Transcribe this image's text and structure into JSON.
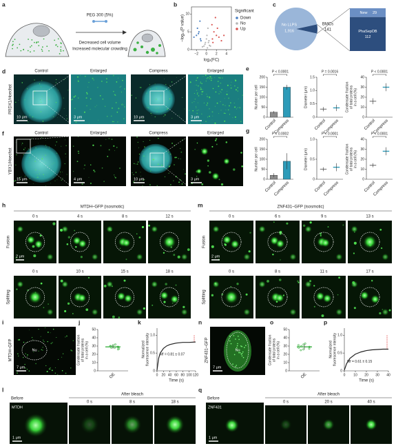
{
  "a": {
    "label": "a",
    "treatment": "PEG 300 (5%)",
    "effect_1": "Decreased cell volume",
    "effect_2": "Increased molecular crowding"
  },
  "b": {
    "label": "b",
    "chart": {
      "type": "scatter",
      "xlabel": "log₂(FC)",
      "ylabel": "−log₁₀(P value)",
      "xlim": [
        -3,
        5
      ],
      "ylim": [
        0,
        12
      ],
      "xticks": [
        {
          "value": -2,
          "label": "−2"
        },
        0,
        2,
        4
      ],
      "yticks": [
        0,
        5,
        10
      ],
      "legend_title": "Significant",
      "series": [
        {
          "name": "Down",
          "color": "#4a7fc1",
          "x": [
            -1.2,
            -1.5,
            -2,
            -1.1,
            -1.8,
            -2.5,
            -1.3,
            -1.6
          ],
          "y": [
            3,
            5,
            4,
            2.5,
            6,
            3.5,
            8,
            4.5
          ]
        },
        {
          "name": "No",
          "color": "#b5b5b5",
          "x": [
            -0.5,
            0.2,
            0.4,
            -0.3,
            0.8,
            0,
            -0.8,
            0.5,
            0.1,
            -0.2,
            0.3,
            0.6
          ],
          "y": [
            1,
            0.5,
            2,
            1.5,
            1,
            3,
            0.8,
            2.5,
            4,
            2,
            6,
            1.2
          ]
        },
        {
          "name": "Up",
          "color": "#d9534f",
          "x": [
            1.2,
            1.5,
            2,
            1.1,
            2.5,
            3,
            1.8,
            1.3,
            2.2,
            3.5
          ],
          "y": [
            3,
            5,
            4,
            7,
            3.5,
            2.5,
            9,
            2,
            6,
            4
          ]
        }
      ]
    }
  },
  "c": {
    "label": "c",
    "pie": {
      "type": "pie",
      "categories": [
        "No LLPS",
        "BMCs"
      ],
      "values": [
        1916,
        141
      ],
      "value_labels": [
        "1,916",
        "141"
      ],
      "colors": [
        "#9ab6d9",
        "#2d4e7e"
      ]
    },
    "bar": {
      "type": "bar",
      "categories": [
        "New",
        "PhaSepDB"
      ],
      "values": [
        29,
        112
      ],
      "colors": [
        "#6b8fc4",
        "#2d4e7e"
      ]
    }
  },
  "d": {
    "label": "d",
    "stain": "PRDX1/Hoechst",
    "columns": [
      "Control",
      "Enlarged",
      "Compress",
      "Enlarged"
    ],
    "scale_bars": [
      "10 μm",
      "3 μm",
      "10 μm",
      "3 μm"
    ]
  },
  "e": {
    "label": "e",
    "charts": [
      {
        "type": "bar",
        "ylabel": [
          "Number per cell"
        ],
        "categories": [
          "Control",
          "Compress"
        ],
        "values": [
          25,
          150
        ],
        "errors": [
          6,
          12
        ],
        "ylim": [
          0,
          200
        ],
        "yticks": [
          0,
          50,
          100,
          150,
          200
        ],
        "p_value": "P < 0.0001",
        "colors": [
          "#8c8c8c",
          "#2e9bb8"
        ]
      },
      {
        "type": "dot",
        "ylabel": [
          "Diameter (μm)"
        ],
        "categories": [
          "Control",
          "Compress"
        ],
        "values": [
          0.3,
          0.35
        ],
        "errors": [
          0.08,
          0.12
        ],
        "ylim": [
          0,
          1.5
        ],
        "yticks": [
          0,
          0.5,
          {
            "value": 1,
            "label": "1.0"
          },
          1.5
        ],
        "p_value": "P = 0.0016",
        "colors": [
          "#8c8c8c",
          "#2e9bb8"
        ]
      },
      {
        "type": "dot",
        "ylabel": [
          "Condensate fraction",
          "of total proteins",
          "in a cell (%)"
        ],
        "categories": [
          "Control",
          "Compress"
        ],
        "values": [
          16,
          30
        ],
        "errors": [
          3,
          4
        ],
        "ylim": [
          0,
          40
        ],
        "yticks": [
          0,
          10,
          20,
          30,
          40
        ],
        "p_value": "P < 0.0001",
        "colors": [
          "#8c8c8c",
          "#2e9bb8"
        ]
      }
    ]
  },
  "f": {
    "label": "f",
    "stain": "YBX1/Hoechst",
    "columns": [
      "Control",
      "Enlarged",
      "Compress",
      "Enlarged"
    ],
    "scale_bars": [
      "15 μm",
      "4 μm",
      "10 μm",
      "3 μm"
    ]
  },
  "g": {
    "label": "g",
    "charts": [
      {
        "type": "bar",
        "ylabel": [
          "Number per cell"
        ],
        "categories": [
          "Control",
          "Compress"
        ],
        "values": [
          20,
          90
        ],
        "errors": [
          10,
          40
        ],
        "ylim": [
          0,
          200
        ],
        "yticks": [
          0,
          50,
          100,
          150,
          200
        ],
        "p_value": "P = 0.0002",
        "colors": [
          "#8c8c8c",
          "#2e9bb8"
        ]
      },
      {
        "type": "dot",
        "ylabel": [
          "Diameter (μm)"
        ],
        "categories": [
          "Control",
          "Compress"
        ],
        "values": [
          0.25,
          0.3
        ],
        "errors": [
          0.05,
          0.1
        ],
        "ylim": [
          0,
          1
        ],
        "yticks": [
          0,
          0.5,
          {
            "value": 1,
            "label": "1.0"
          }
        ],
        "p_value": "P < 0.0001",
        "colors": [
          "#8c8c8c",
          "#2e9bb8"
        ]
      },
      {
        "type": "dot",
        "ylabel": [
          "Condensate fraction",
          "of total proteins",
          "in a cell (%)"
        ],
        "categories": [
          "Control",
          "Compress"
        ],
        "values": [
          14,
          28
        ],
        "errors": [
          2,
          4
        ],
        "ylim": [
          0,
          40
        ],
        "yticks": [
          0,
          10,
          20,
          30,
          40
        ],
        "p_value": "P < 0.0001",
        "colors": [
          "#8c8c8c",
          "#2e9bb8"
        ]
      }
    ]
  },
  "h": {
    "label": "h",
    "title": "MTDH–GFP (isosmotic)",
    "rows": [
      {
        "name": "Fusion",
        "times": [
          "0 s",
          "4 s",
          "8 s",
          "12 s"
        ]
      },
      {
        "name": "Splitting",
        "times": [
          "0 s",
          "10 s",
          "15 s",
          "18 s"
        ]
      }
    ],
    "scale_bar": "2 μm"
  },
  "m": {
    "label": "m",
    "title": "ZNF431–GFP (isosmotic)",
    "rows": [
      {
        "name": "Fusion",
        "times": [
          "0 s",
          "6 s",
          "9 s",
          "13 s"
        ]
      },
      {
        "name": "Splitting",
        "times": [
          "0 s",
          "8 s",
          "11 s",
          "17 s"
        ]
      }
    ],
    "scale_bar": "2 μm"
  },
  "i": {
    "label": "i",
    "stain": "MTDH–GFP",
    "nucleus": "Nu",
    "scale_bar": "7 μm"
  },
  "j": {
    "label": "j",
    "chart": {
      "type": "dot",
      "ylabel": [
        "Condensate fraction",
        "of total proteins",
        "in a cell (%)"
      ],
      "categories": [
        "OE"
      ],
      "values": [
        29
      ],
      "errors": [
        2
      ],
      "points": [
        [
          27,
          29,
          30,
          31,
          28,
          26,
          32,
          29,
          30,
          28
        ]
      ],
      "ylim": [
        0,
        50
      ],
      "yticks": [
        0,
        10,
        20,
        30,
        40,
        50
      ],
      "colors": [
        "#3cb043"
      ]
    }
  },
  "k": {
    "label": "k",
    "chart": {
      "type": "line",
      "xlabel": "Time (s)",
      "ylabel": [
        "Normalized",
        "fluorescence intensity"
      ],
      "x": [
        0,
        5,
        10,
        20,
        30,
        40,
        60,
        80,
        100,
        120
      ],
      "values": [
        0.02,
        0.35,
        0.5,
        0.63,
        0.7,
        0.74,
        0.78,
        0.8,
        0.8,
        0.81
      ],
      "xlim": [
        0,
        120
      ],
      "ylim": [
        0,
        1.2
      ],
      "xticks": [
        0,
        20,
        40,
        60,
        80,
        100,
        120
      ],
      "yticks": [
        0,
        0.5,
        {
          "value": 1,
          "label": "1.0"
        }
      ],
      "annotation": "Mf = 0.81 ± 0.07",
      "color": "#222222"
    }
  },
  "n": {
    "label": "n",
    "stain": "ZNF431–GFP",
    "nucleus": "Nu",
    "scale_bar": "7 μm"
  },
  "o": {
    "label": "o",
    "chart": {
      "type": "dot",
      "ylabel": [
        "Condensate fraction",
        "of total proteins",
        "in a cell (%)"
      ],
      "categories": [
        "OE"
      ],
      "values": [
        29
      ],
      "errors": [
        3
      ],
      "points": [
        [
          25,
          28,
          31,
          33,
          27,
          30,
          29,
          26,
          32
        ]
      ],
      "ylim": [
        0,
        50
      ],
      "yticks": [
        0,
        10,
        20,
        30,
        40,
        50
      ],
      "colors": [
        "#3cb043"
      ]
    }
  },
  "p": {
    "label": "p",
    "chart": {
      "type": "line",
      "xlabel": "Time (s)",
      "ylabel": [
        "Normalized",
        "fluorescence intensity"
      ],
      "x": [
        0,
        2,
        5,
        10,
        15,
        20,
        25,
        30,
        35,
        40
      ],
      "values": [
        0.02,
        0.2,
        0.35,
        0.47,
        0.53,
        0.57,
        0.59,
        0.6,
        0.61,
        0.61
      ],
      "xlim": [
        0,
        40
      ],
      "ylim": [
        0,
        1.2
      ],
      "xticks": [
        0,
        10,
        20,
        30,
        40
      ],
      "yticks": [
        0,
        0.5,
        {
          "value": 1,
          "label": "1.0"
        }
      ],
      "annotation": "Mf = 0.61 ± 0.15",
      "color": "#222222"
    }
  },
  "l": {
    "label": "l",
    "protein": "MTDH",
    "before": "Before",
    "after": "After bleach",
    "times": [
      "0 s",
      "8 s",
      "18 s"
    ],
    "scale_bar": "1 μm"
  },
  "q": {
    "label": "q",
    "protein": "ZNF431",
    "before": "Before",
    "after": "After bleach",
    "times": [
      "0 s",
      "20 s",
      "40 s"
    ],
    "scale_bar": "1 μm"
  }
}
